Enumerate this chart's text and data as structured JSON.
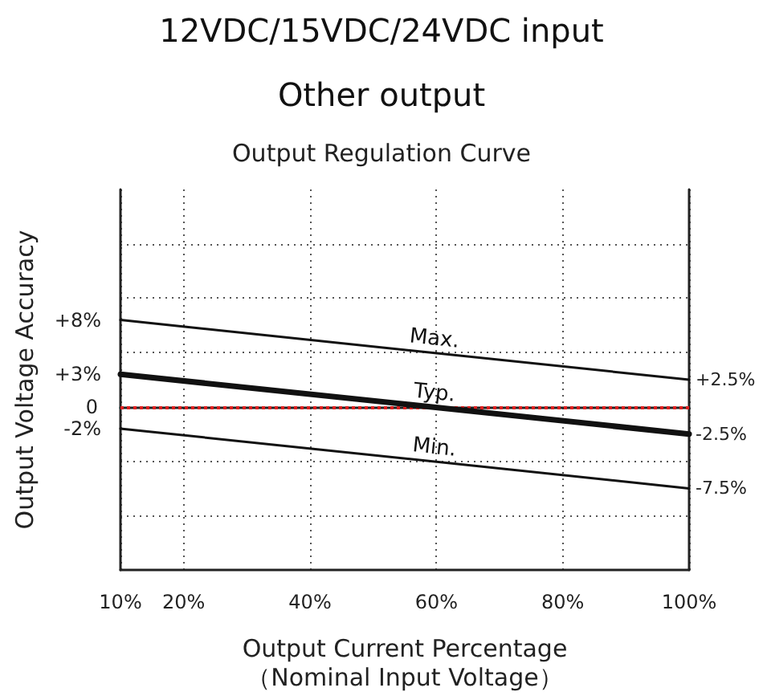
{
  "chart_data": {
    "type": "line",
    "title": "12VDC/15VDC/24VDC input",
    "subtitle": "Other output",
    "annotations": [
      "Output Regulation Curve"
    ],
    "xlabel": "Output Current Percentage\n（Nominal Input Voltage）",
    "ylabel": "Output Voltage Accuracy",
    "x": [
      10,
      100
    ],
    "series": [
      {
        "name": "Max.",
        "color": "#111111",
        "values": [
          8,
          2.5
        ],
        "value_labels": [
          "+8%",
          "+2.5%"
        ]
      },
      {
        "name": "Typ.",
        "color": "#111111",
        "values": [
          3,
          -2.5
        ],
        "value_labels": [
          "+3%",
          "-2.5%"
        ]
      },
      {
        "name": "Min.",
        "color": "#111111",
        "values": [
          -2,
          -7.5
        ],
        "value_labels": [
          "-2%",
          "-7.5%"
        ]
      }
    ],
    "xlim": [
      10,
      100
    ],
    "xticks": [
      {
        "value": 10,
        "label": "10%"
      },
      {
        "value": 20,
        "label": "20%"
      },
      {
        "value": 40,
        "label": "40%"
      },
      {
        "value": 60,
        "label": "60%"
      },
      {
        "value": 80,
        "label": "80%"
      },
      {
        "value": 100,
        "label": "100%"
      }
    ],
    "ylim": [
      -15,
      20
    ],
    "yticks": [
      {
        "value": -10,
        "label": null
      },
      {
        "value": -5,
        "label": null
      },
      {
        "value": 5,
        "label": null
      },
      {
        "value": 10,
        "label": null
      },
      {
        "value": 15,
        "label": null
      }
    ],
    "ref_lines": [
      {
        "axis": "y",
        "value": 0,
        "label": "0",
        "color": "#e02020",
        "line_style": "dotted"
      }
    ],
    "grid": true,
    "legend": false,
    "marker": "none",
    "line_style": "solid"
  }
}
